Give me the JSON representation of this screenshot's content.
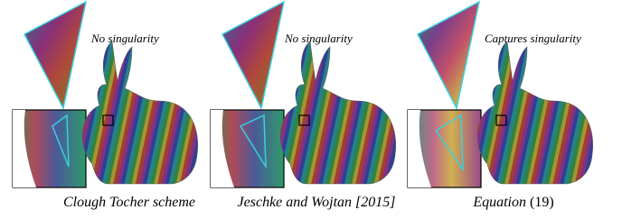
{
  "panels": [
    {
      "annotation": "No singularity",
      "caption": "Clough Tocher scheme"
    },
    {
      "annotation": "No singularity",
      "caption": "Jeschke and Wojtan [2015]"
    },
    {
      "annotation": "Captures singularity",
      "caption": "Equation",
      "reference": "(19)"
    }
  ]
}
